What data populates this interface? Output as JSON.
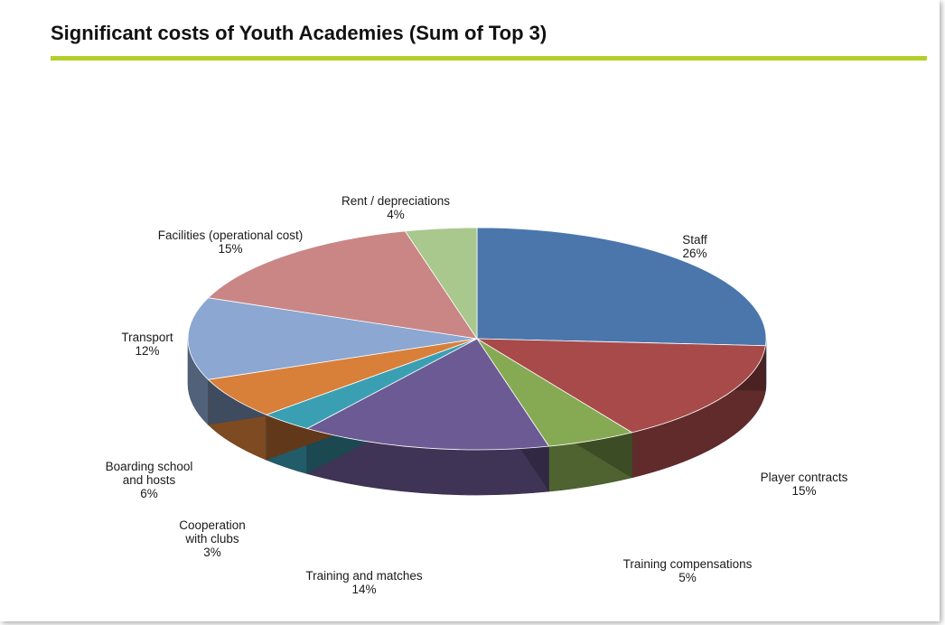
{
  "chart_data": {
    "type": "pie",
    "title": "Significant costs of Youth Academies (Sum of Top 3)",
    "slices": [
      {
        "label": "Staff",
        "value": 26,
        "percent_label": "26%",
        "color": "#4a76ac"
      },
      {
        "label": "Player contracts",
        "value": 15,
        "percent_label": "15%",
        "color": "#a84a4a"
      },
      {
        "label": "Training compensations",
        "value": 5,
        "percent_label": "5%",
        "color": "#86aa53"
      },
      {
        "label": "Training and matches",
        "value": 14,
        "percent_label": "14%",
        "color": "#6c5a94"
      },
      {
        "label": "Cooperation\nwith clubs",
        "value": 3,
        "percent_label": "3%",
        "color": "#3b9fb3"
      },
      {
        "label": "Boarding school\nand hosts",
        "value": 6,
        "percent_label": "6%",
        "color": "#d87f3a"
      },
      {
        "label": "Transport",
        "value": 12,
        "percent_label": "12%",
        "color": "#8ba7d2"
      },
      {
        "label": "Facilities (operational cost)",
        "value": 15,
        "percent_label": "15%",
        "color": "#c98685"
      },
      {
        "label": "Rent / depreciations",
        "value": 4,
        "percent_label": "4%",
        "color": "#a9c88e"
      }
    ],
    "style": "3d-tilted",
    "accent_rule_color": "#b5cf2a"
  }
}
